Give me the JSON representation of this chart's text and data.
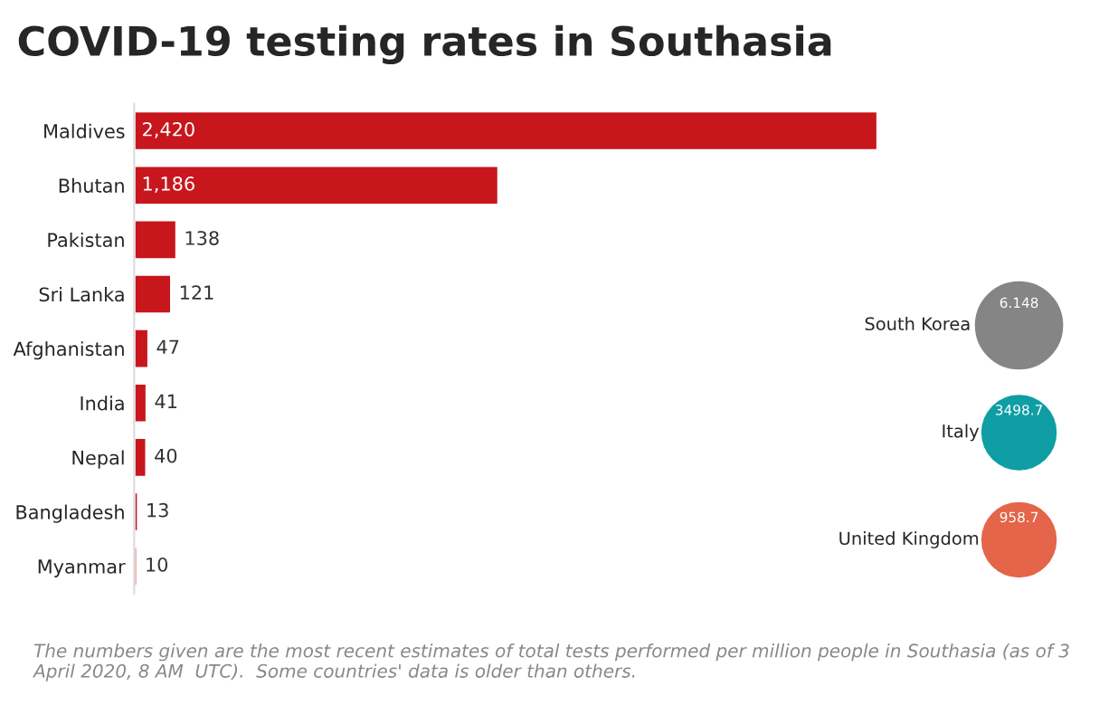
{
  "chart_data": [
    {
      "type": "bar",
      "orientation": "horizontal",
      "title": "COVID-19 testing rates in Southasia",
      "categories": [
        "Maldives",
        "Bhutan",
        "Pakistan",
        "Sri Lanka",
        "Afghanistan",
        "India",
        "Nepal",
        "Bangladesh",
        "Myanmar"
      ],
      "values": [
        2420,
        1186,
        138,
        121,
        47,
        41,
        40,
        13,
        10
      ],
      "value_labels": [
        "2,420",
        "1,186",
        "138",
        "121",
        "47",
        "41",
        "40",
        "13",
        "10"
      ],
      "color": "#c8161d",
      "xlim": [
        0,
        2420
      ],
      "tick_labels": "y",
      "grid": false,
      "legend": false,
      "annotations": [
        "The numbers given are the most recent estimates of total tests performed per million people in Southasia (as of 3 April 2020, 8 AM  UTC).  Some countries' data is older than others."
      ]
    },
    {
      "type": "other",
      "categories": [
        "South Korea",
        "Italy",
        "United Kingdom"
      ],
      "values": [
        6.148,
        3498.7,
        958.7
      ],
      "data_labels": true,
      "colors": [
        "#858585",
        "#0e9ea3",
        "#e4654a"
      ]
    }
  ]
}
